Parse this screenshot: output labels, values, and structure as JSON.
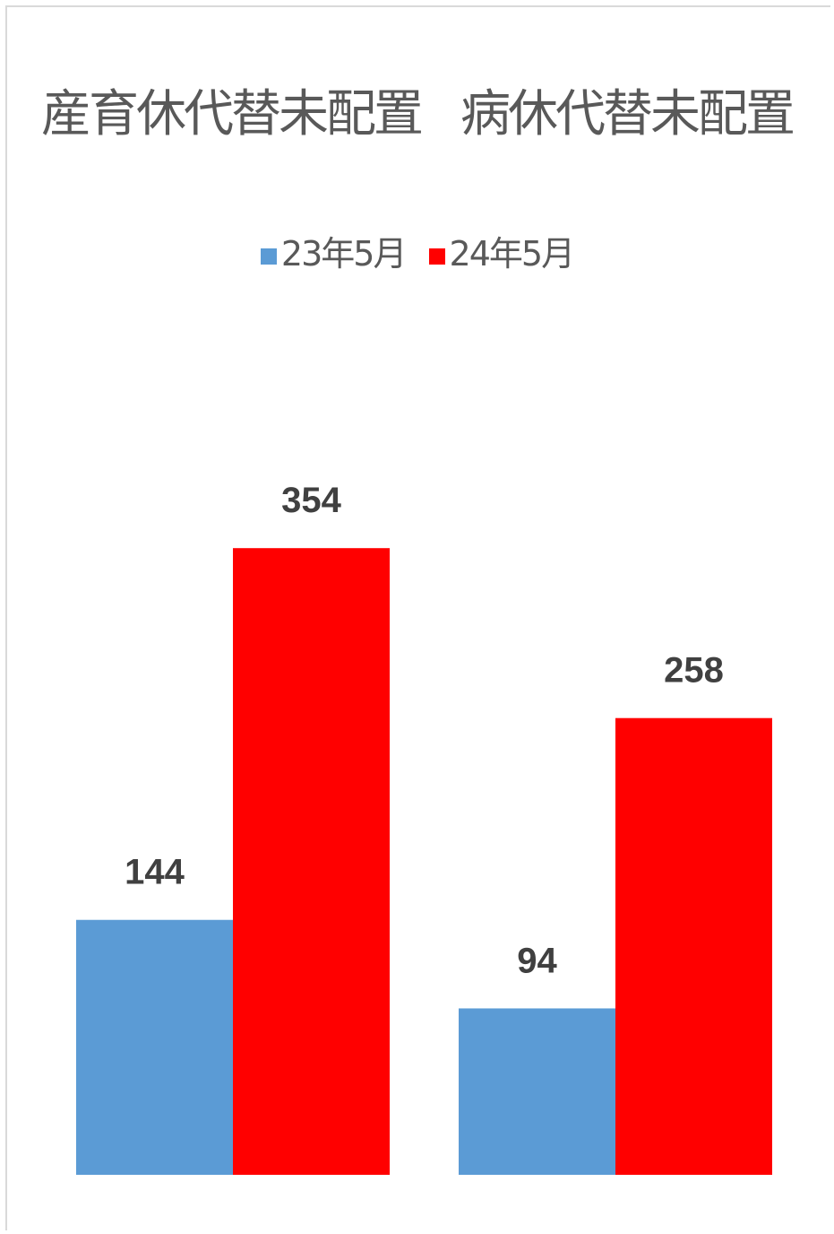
{
  "chart_data": {
    "type": "bar",
    "title_parts": [
      "産育休代替未配置",
      "病休代替未配置"
    ],
    "categories": [
      "",
      ""
    ],
    "series": [
      {
        "name": "23年5月",
        "color": "#5b9bd5",
        "values": [
          144,
          94
        ]
      },
      {
        "name": "24年5月",
        "color": "#ff0000",
        "values": [
          354,
          258
        ]
      }
    ],
    "ylim": [
      0,
      500
    ],
    "grid": false,
    "legend_position": "top",
    "data_labels": true
  }
}
